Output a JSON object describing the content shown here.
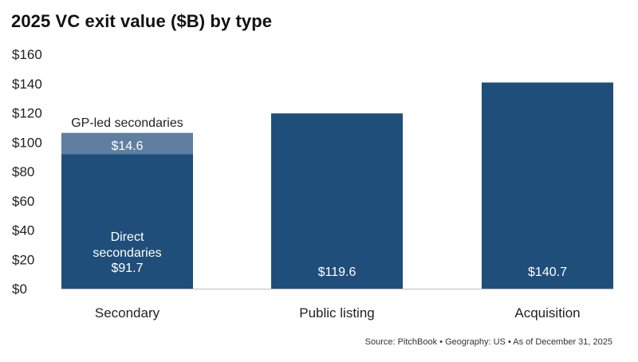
{
  "chart_data": {
    "type": "bar",
    "title": "2025 VC exit value ($B) by type",
    "categories": [
      "Secondary",
      "Public listing",
      "Acquisition"
    ],
    "series": [
      {
        "name": "Direct secondaries",
        "values": [
          91.7,
          119.6,
          140.7
        ],
        "labels": [
          "Direct secondaries $91.7",
          "$119.6",
          "$140.7"
        ],
        "color": "#1f4e7a"
      },
      {
        "name": "GP-led secondaries",
        "values": [
          14.6,
          0,
          0
        ],
        "labels": [
          "$14.6",
          "",
          ""
        ],
        "color": "#5f7fa0"
      }
    ],
    "ylim": [
      0,
      160
    ],
    "yticks": [
      "$0",
      "$20",
      "$40",
      "$60",
      "$80",
      "$100",
      "$120",
      "$140",
      "$160"
    ],
    "stacked": true,
    "grid": false,
    "legend": "none",
    "annotation": "GP-led secondaries",
    "source": "Source: PitchBook • Geography: US • As of December 31, 2025"
  }
}
